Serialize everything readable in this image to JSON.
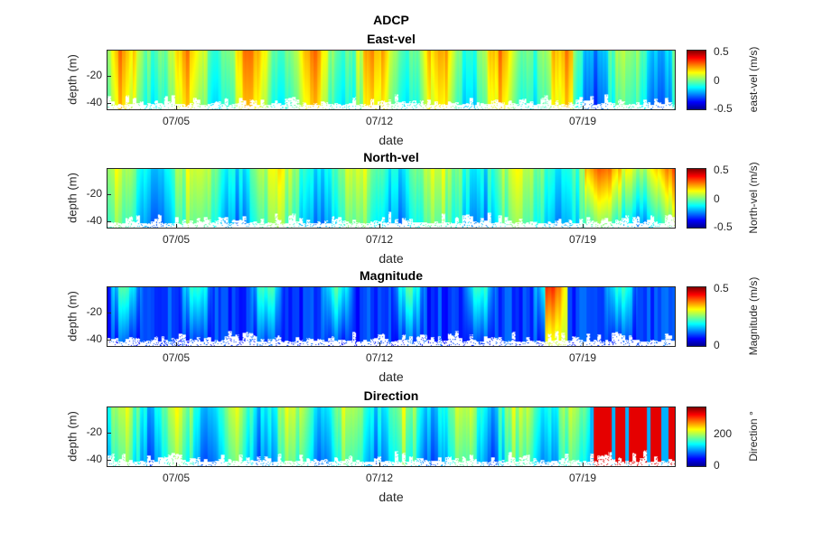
{
  "figure_title": "ADCP",
  "chart_data": [
    {
      "type": "heatmap",
      "title": "East-vel",
      "xlabel": "date",
      "ylabel": "depth (m)",
      "x_ticks": [
        "07/05",
        "07/12",
        "07/19"
      ],
      "y_ticks": [
        "-20",
        "-40"
      ],
      "ylim": [
        -45,
        -3
      ],
      "colorbar": {
        "label": "east-vel (m/s)",
        "ticks": [
          "0.5",
          "0",
          "-0.5"
        ],
        "range": [
          -0.5,
          0.5
        ]
      }
    },
    {
      "type": "heatmap",
      "title": "North-vel",
      "xlabel": "date",
      "ylabel": "depth (m)",
      "x_ticks": [
        "07/05",
        "07/12",
        "07/19"
      ],
      "y_ticks": [
        "-20",
        "-40"
      ],
      "ylim": [
        -45,
        -3
      ],
      "colorbar": {
        "label": "North-vel (m/s)",
        "ticks": [
          "0.5",
          "0",
          "-0.5"
        ],
        "range": [
          -0.5,
          0.5
        ]
      }
    },
    {
      "type": "heatmap",
      "title": "Magnitude",
      "xlabel": "date",
      "ylabel": "depth (m)",
      "x_ticks": [
        "07/05",
        "07/12",
        "07/19"
      ],
      "y_ticks": [
        "-20",
        "-40"
      ],
      "ylim": [
        -45,
        -3
      ],
      "colorbar": {
        "label": "Magnitude (m/s)",
        "ticks": [
          "0.5",
          "0"
        ],
        "range": [
          0,
          0.5
        ]
      }
    },
    {
      "type": "heatmap",
      "title": "Direction",
      "xlabel": "date",
      "ylabel": "depth (m)",
      "x_ticks": [
        "07/05",
        "07/12",
        "07/19"
      ],
      "y_ticks": [
        "-20",
        "-40"
      ],
      "ylim": [
        -45,
        -3
      ],
      "colorbar": {
        "label": "Direction °",
        "ticks": [
          "200",
          "0"
        ],
        "range": [
          0,
          360
        ]
      }
    }
  ]
}
